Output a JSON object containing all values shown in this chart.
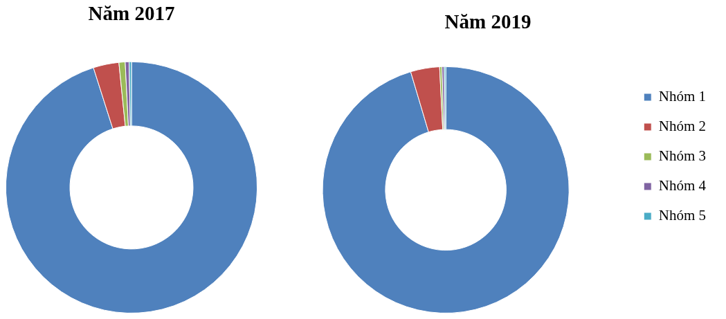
{
  "chart_data": [
    {
      "type": "donut",
      "title": "Năm 2017",
      "categories": [
        null,
        null,
        null,
        null,
        null
      ],
      "values": [
        95.1,
        3.3,
        0.8,
        0.5,
        0.3
      ],
      "colors": [
        "#4f81bd",
        "#c0504d",
        "#9bbb59",
        "#8064a2",
        "#4bacc6"
      ],
      "legend": false
    },
    {
      "type": "donut",
      "title": "Năm 2019",
      "categories": [
        "Nhóm 1",
        "Nhóm 2",
        "Nhóm 3",
        "Nhóm 4",
        "Nhóm 5"
      ],
      "values": [
        95.4,
        3.8,
        0.3,
        0.3,
        0.2
      ],
      "colors": [
        "#4f81bd",
        "#c0504d",
        "#9bbb59",
        "#8064a2",
        "#4bacc6"
      ],
      "legend": "right"
    }
  ]
}
